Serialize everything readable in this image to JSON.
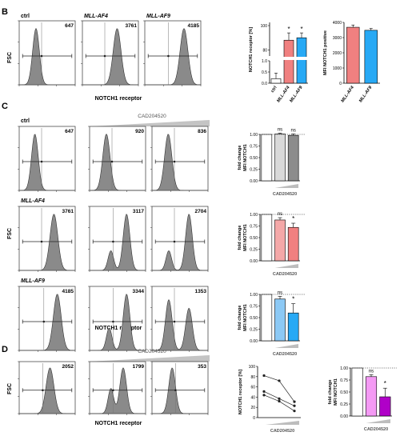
{
  "panels": {
    "B": {
      "letter": "B",
      "y_label": "FSC",
      "x_label": "NOTCH1 receptor",
      "histograms": [
        {
          "title": "ctrl",
          "title_italic": false,
          "mfi": "647",
          "peaks": [
            {
              "pos": 0.3,
              "height": 1.0,
              "width": 0.06
            }
          ],
          "gate": 0.4
        },
        {
          "title": "MLL-AF4",
          "title_italic": true,
          "mfi": "3761",
          "peaks": [
            {
              "pos": 0.62,
              "height": 1.0,
              "width": 0.07
            }
          ],
          "gate": 0.4
        },
        {
          "title": "MLL-AF9",
          "title_italic": true,
          "mfi": "4185",
          "peaks": [
            {
              "pos": 0.7,
              "height": 1.0,
              "width": 0.07
            }
          ],
          "gate": 0.42
        }
      ],
      "receptor_bar": {
        "type": "bar",
        "ylabel": "NOTCH1 receptor [%]",
        "categories": [
          "ctrl",
          "MLL-AF4",
          "MLL-AF9"
        ],
        "values": [
          0.2,
          88,
          90
        ],
        "errors": [
          0.25,
          6,
          4
        ],
        "colors": [
          "#ffffff",
          "#f08080",
          "#27a9f5"
        ],
        "stars": [
          "",
          "*",
          "*"
        ],
        "lower_ticks": [
          "0.0",
          "0.5",
          "1.0"
        ],
        "upper_ticks": [
          "80",
          "100"
        ],
        "lower_ylim": [
          0,
          1.0
        ],
        "upper_ylim": [
          75,
          100
        ],
        "axis_break": true
      },
      "mfi_bar": {
        "type": "bar",
        "ylabel": "MFI NOTCH1 positive",
        "categories": [
          "MLL-AF4",
          "MLL-AF9"
        ],
        "values": [
          3680,
          3480
        ],
        "errors": [
          150,
          120
        ],
        "colors": [
          "#f08080",
          "#27a9f5"
        ],
        "ticks": [
          "0",
          "1000",
          "2000",
          "3000",
          "4000"
        ],
        "ylim": [
          0,
          4000
        ]
      }
    },
    "C": {
      "letter": "C",
      "treatment": "CAD204520",
      "y_label": "FSC",
      "x_label": "NOTCH1 receptor",
      "rows": [
        {
          "label": "ctrl",
          "label_italic": false,
          "histograms": [
            {
              "mfi": "647",
              "peaks": [
                {
                  "pos": 0.28,
                  "height": 1.0,
                  "width": 0.06
                }
              ],
              "gate": 0.4
            },
            {
              "mfi": "920",
              "peaks": [
                {
                  "pos": 0.3,
                  "height": 1.0,
                  "width": 0.065
                }
              ],
              "gate": 0.4
            },
            {
              "mfi": "836",
              "peaks": [
                {
                  "pos": 0.29,
                  "height": 1.0,
                  "width": 0.065
                }
              ],
              "gate": 0.4
            }
          ],
          "bar": {
            "type": "bar",
            "ylabel_lines": [
              "fold change",
              "MFI NOTCH1"
            ],
            "values": [
              1.0,
              1.01,
              0.98
            ],
            "errors": [
              0,
              0.02,
              0.03
            ],
            "colors": [
              "#ffffff",
              "#d9d9d9",
              "#8c8c8c"
            ],
            "stars": [
              "",
              "ns",
              "ns"
            ],
            "ticks": [
              "0.00",
              "0.25",
              "0.50",
              "0.75",
              "1.00"
            ],
            "ylim": [
              0,
              1.0
            ],
            "xlabel": "CAD204520"
          }
        },
        {
          "label": "MLL-AF4",
          "label_italic": true,
          "histograms": [
            {
              "mfi": "3761",
              "peaks": [
                {
                  "pos": 0.62,
                  "height": 1.0,
                  "width": 0.07
                }
              ],
              "gate": 0.4
            },
            {
              "mfi": "3117",
              "peaks": [
                {
                  "pos": 0.38,
                  "height": 0.35,
                  "width": 0.05
                },
                {
                  "pos": 0.66,
                  "height": 1.0,
                  "width": 0.06
                }
              ],
              "gate": 0.42
            },
            {
              "mfi": "2704",
              "peaks": [
                {
                  "pos": 0.3,
                  "height": 0.35,
                  "width": 0.05
                },
                {
                  "pos": 0.66,
                  "height": 1.0,
                  "width": 0.06
                }
              ],
              "gate": 0.4
            }
          ],
          "bar": {
            "type": "bar",
            "ylabel_lines": [
              "fold change",
              "MFI NOTCH1"
            ],
            "values": [
              1.0,
              0.88,
              0.72
            ],
            "errors": [
              0,
              0.05,
              0.09
            ],
            "colors": [
              "#ffffff",
              "#f4a8a8",
              "#f08080"
            ],
            "stars": [
              "",
              "ns",
              "*"
            ],
            "ticks": [
              "0.00",
              "0.25",
              "0.50",
              "0.75",
              "1.00"
            ],
            "ylim": [
              0,
              1.0
            ],
            "xlabel": "CAD204520"
          }
        },
        {
          "label": "MLL-AF9",
          "label_italic": true,
          "histograms": [
            {
              "mfi": "4185",
              "peaks": [
                {
                  "pos": 0.68,
                  "height": 1.0,
                  "width": 0.07
                }
              ],
              "gate": 0.44
            },
            {
              "mfi": "3344",
              "peaks": [
                {
                  "pos": 0.35,
                  "height": 0.4,
                  "width": 0.05
                },
                {
                  "pos": 0.66,
                  "height": 1.0,
                  "width": 0.06
                }
              ],
              "gate": 0.42
            },
            {
              "mfi": "1353",
              "peaks": [
                {
                  "pos": 0.3,
                  "height": 0.9,
                  "width": 0.06
                },
                {
                  "pos": 0.66,
                  "height": 0.75,
                  "width": 0.06
                }
              ],
              "gate": 0.4
            }
          ],
          "bar": {
            "type": "bar",
            "ylabel_lines": [
              "fold change",
              "MFI NOTCH1"
            ],
            "values": [
              1.0,
              0.9,
              0.6
            ],
            "errors": [
              0,
              0.06,
              0.2
            ],
            "colors": [
              "#ffffff",
              "#8cc9f5",
              "#27a9f5"
            ],
            "stars": [
              "",
              "ns",
              "*"
            ],
            "ticks": [
              "0.00",
              "0.25",
              "0.50",
              "0.75",
              "1.00"
            ],
            "ylim": [
              0,
              1.0
            ],
            "xlabel": "CAD204520"
          }
        }
      ]
    },
    "D": {
      "letter": "D",
      "treatment": "CAD204520",
      "y_label": "FSC",
      "x_label": "NOTCH1 receptor",
      "histograms": [
        {
          "mfi": "2052",
          "peaks": [
            {
              "pos": 0.55,
              "height": 1.0,
              "width": 0.07
            }
          ],
          "gate": 0.42
        },
        {
          "mfi": "1799",
          "peaks": [
            {
              "pos": 0.38,
              "height": 0.55,
              "width": 0.05
            },
            {
              "pos": 0.6,
              "height": 1.0,
              "width": 0.06
            }
          ],
          "gate": 0.42
        },
        {
          "mfi": "353",
          "peaks": [
            {
              "pos": 0.36,
              "height": 1.0,
              "width": 0.06
            }
          ],
          "gate": 0.42
        }
      ],
      "line_chart": {
        "type": "line",
        "ylabel": "NOTCH1 receptor [%]",
        "xlabel": "CAD204520",
        "ticks": [
          "0",
          "20",
          "40",
          "60",
          "80",
          "100"
        ],
        "ylim": [
          0,
          100
        ],
        "series": [
          {
            "values": [
              82,
              72,
              31
            ]
          },
          {
            "values": [
              51,
              37,
              23
            ]
          },
          {
            "values": [
              44,
              32,
              13
            ]
          }
        ]
      },
      "bar": {
        "type": "bar",
        "ylabel_lines": [
          "fold change",
          "MFI NOTCH1"
        ],
        "values": [
          1.0,
          0.82,
          0.4
        ],
        "errors": [
          0,
          0.04,
          0.18
        ],
        "colors": [
          "#ffffff",
          "#f49af4",
          "#b000c8"
        ],
        "stars": [
          "",
          "ns",
          "*"
        ],
        "ticks": [
          "0.00",
          "0.25",
          "0.50",
          "0.75",
          "1.00"
        ],
        "ylim": [
          0,
          1.0
        ],
        "xlabel": "CAD204520"
      }
    }
  }
}
